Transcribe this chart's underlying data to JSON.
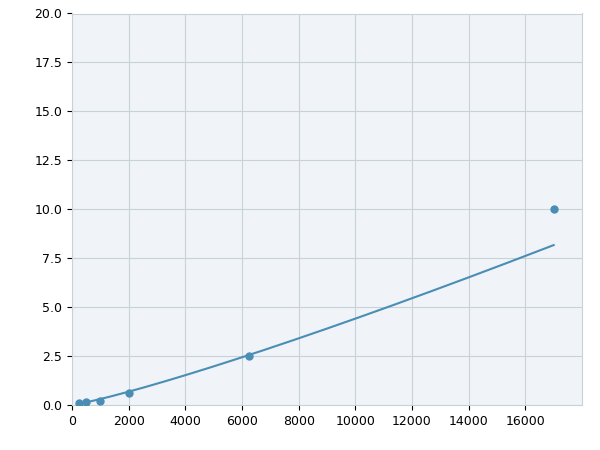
{
  "x_points": [
    250,
    500,
    1000,
    2000,
    6250,
    17000
  ],
  "y_points": [
    0.08,
    0.15,
    0.2,
    0.6,
    2.5,
    10.0
  ],
  "line_color": "#4a8db5",
  "marker_color": "#4a8db5",
  "marker_size": 5,
  "xlim": [
    0,
    18000
  ],
  "ylim": [
    0,
    20.0
  ],
  "xticks": [
    0,
    2000,
    4000,
    6000,
    8000,
    10000,
    12000,
    14000,
    16000
  ],
  "yticks": [
    0.0,
    2.5,
    5.0,
    7.5,
    10.0,
    12.5,
    15.0,
    17.5,
    20.0
  ],
  "grid_color": "#c8d0d8",
  "background_color": "#f0f4f8",
  "figure_background": "#ffffff",
  "power_a": 1.8e-07,
  "power_b": 1.85
}
